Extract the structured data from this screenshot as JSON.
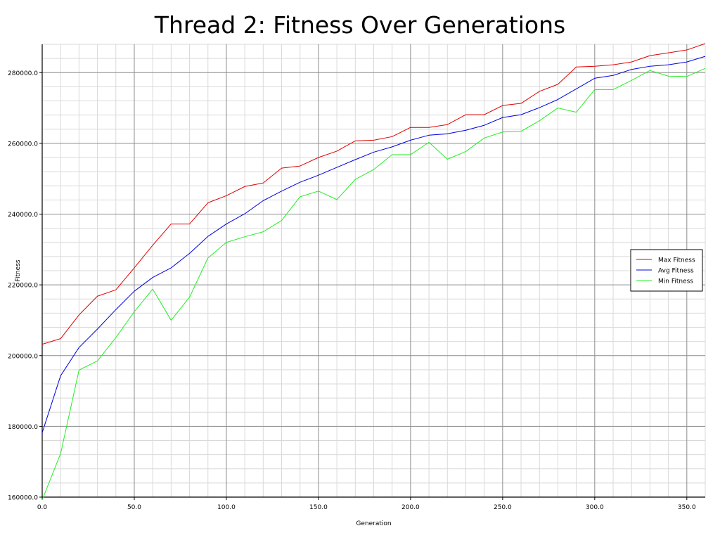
{
  "chart_data": {
    "type": "line",
    "title": "Thread 2: Fitness Over Generations",
    "xlabel": "Generation",
    "ylabel": "Fitness",
    "xlim": [
      0,
      360
    ],
    "ylim": [
      160000,
      288000
    ],
    "x_ticks": [
      0,
      50,
      100,
      150,
      200,
      250,
      300,
      350
    ],
    "x_tick_labels": [
      "0.0",
      "50.0",
      "100.0",
      "150.0",
      "200.0",
      "250.0",
      "300.0",
      "350.0"
    ],
    "y_ticks": [
      160000,
      180000,
      200000,
      220000,
      240000,
      260000,
      280000
    ],
    "y_tick_labels": [
      "160000.0",
      "180000.0",
      "200000.0",
      "220000.0",
      "240000.0",
      "260000.0",
      "280000.0"
    ],
    "grid": true,
    "legend_position": "right",
    "x": [
      0,
      10,
      20,
      30,
      40,
      50,
      60,
      70,
      80,
      90,
      100,
      110,
      120,
      130,
      140,
      150,
      160,
      170,
      180,
      190,
      200,
      210,
      220,
      230,
      240,
      250,
      260,
      270,
      280,
      290,
      300,
      310,
      320,
      330,
      340,
      350,
      360
    ],
    "series": [
      {
        "name": "Max Fitness",
        "color": "#e00000",
        "values": [
          203200,
          204800,
          211500,
          216800,
          218600,
          224800,
          231200,
          237200,
          237200,
          243200,
          245200,
          247800,
          248800,
          253000,
          253600,
          256000,
          257800,
          260700,
          260900,
          261900,
          264500,
          264500,
          265300,
          268100,
          268100,
          270700,
          271300,
          274700,
          276700,
          281600,
          281800,
          282200,
          283000,
          284800,
          285600,
          286400,
          288200
        ]
      },
      {
        "name": "Avg Fitness",
        "color": "#0000e0",
        "values": [
          178200,
          194300,
          202300,
          207500,
          213000,
          218200,
          222100,
          224800,
          228900,
          233700,
          237200,
          240100,
          243800,
          246500,
          249000,
          251000,
          253200,
          255400,
          257500,
          259000,
          260900,
          262300,
          262700,
          263700,
          265100,
          267300,
          268100,
          270100,
          272400,
          275400,
          278400,
          279200,
          280900,
          281800,
          282200,
          283000,
          284600
        ]
      },
      {
        "name": "Min Fitness",
        "color": "#22ee22",
        "values": [
          159200,
          172300,
          195900,
          198500,
          205100,
          212400,
          218800,
          210000,
          216500,
          227600,
          232000,
          233600,
          235000,
          238200,
          244900,
          246500,
          244100,
          249800,
          252600,
          256800,
          256800,
          260300,
          255500,
          257700,
          261500,
          263200,
          263400,
          266400,
          270000,
          268800,
          275200,
          275200,
          277800,
          280600,
          279000,
          278900,
          281200
        ]
      }
    ]
  }
}
